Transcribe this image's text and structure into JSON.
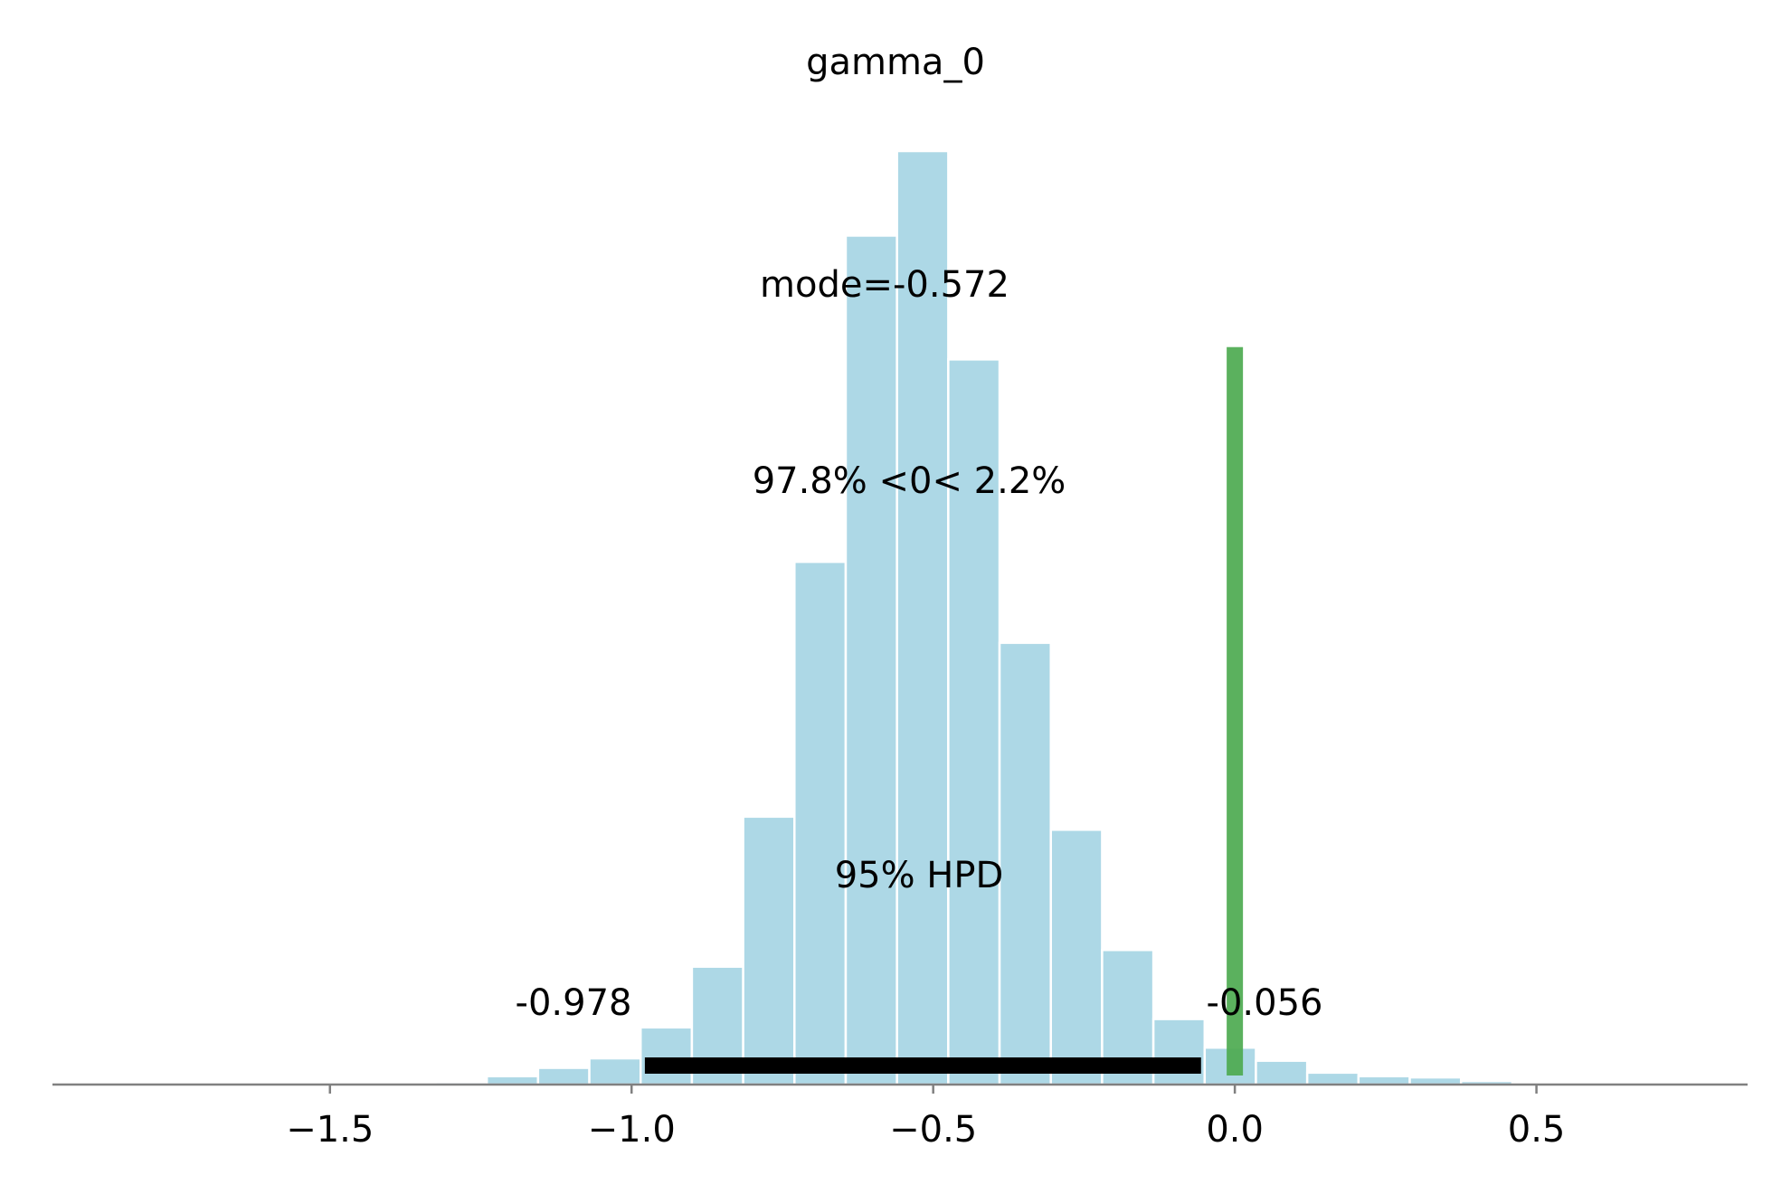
{
  "chart_data": {
    "type": "bar",
    "title": "gamma_0",
    "xlabel": "",
    "ylabel": "",
    "xlim": [
      -1.96,
      0.85
    ],
    "x_ticks": [
      -1.5,
      -1.0,
      -0.5,
      0.0,
      0.5
    ],
    "x_tick_labels": [
      "−1.5",
      "−1.0",
      "−0.5",
      "0.0",
      "0.5"
    ],
    "bin_width": 0.085,
    "bin_starts": [
      -1.325,
      -1.24,
      -1.155,
      -1.07,
      -0.985,
      -0.9,
      -0.815,
      -0.73,
      -0.645,
      -0.56,
      -0.475,
      -0.39,
      -0.305,
      -0.22,
      -0.135,
      -0.05,
      0.035,
      0.12,
      0.205,
      0.29,
      0.375
    ],
    "values": [
      2,
      7,
      14,
      22,
      48,
      99,
      225,
      439,
      713,
      784,
      609,
      371,
      214,
      113,
      55,
      31,
      20,
      10,
      7,
      6,
      3
    ],
    "ylim": [
      0,
      784
    ],
    "grid": false,
    "bar_color": "#add8e6",
    "annotations": {
      "mode_label": "mode=-0.572",
      "ref_label": "97.8% <0< 2.2%",
      "hpd_label": "95% HPD",
      "hpd_low_label": "-0.978",
      "hpd_high_label": "-0.056"
    },
    "hpd_interval": [
      -0.978,
      -0.056
    ],
    "hpd_color": "#000000",
    "ref_value": 0.0,
    "ref_line_top_fraction": 0.79,
    "ref_color": "#4daa50"
  }
}
